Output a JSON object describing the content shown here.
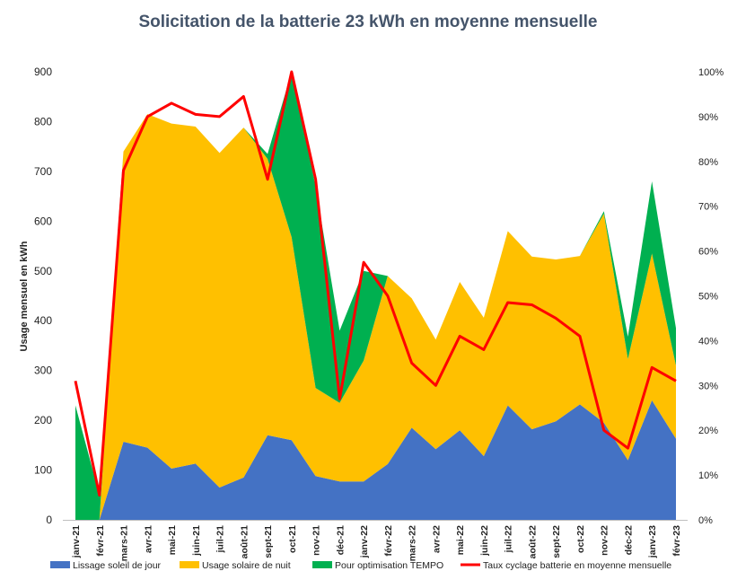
{
  "colors": {
    "jour": "#4472c4",
    "nuit": "#ffc000",
    "tempo": "#00b050",
    "taux": "#ff0000",
    "grid": "#d9d9d9",
    "title": "#44546a"
  },
  "chart_data": {
    "type": "area",
    "title": "Solicitation  de la batterie 23 kWh en moyenne mensuelle",
    "ylabel": "Usage  mensuel en kWh",
    "y2label": "",
    "ylim": [
      0,
      900
    ],
    "y2lim": [
      0,
      1
    ],
    "yticks": [
      "0",
      "100",
      "200",
      "300",
      "400",
      "500",
      "600",
      "700",
      "800",
      "900"
    ],
    "y2ticks": [
      "0%",
      "10%",
      "20%",
      "30%",
      "40%",
      "50%",
      "60%",
      "70%",
      "80%",
      "90%",
      "100%"
    ],
    "grid": false,
    "legend_position": "bottom",
    "categories": [
      "janv-21",
      "févr-21",
      "mars-21",
      "avr-21",
      "mai-21",
      "juin-21",
      "juil-21",
      "août-21",
      "sept-21",
      "oct-21",
      "nov-21",
      "déc-21",
      "janv-22",
      "févr-22",
      "mars-22",
      "avr-22",
      "mai-22",
      "juin-22",
      "juil-22",
      "août-22",
      "sept-22",
      "oct-22",
      "nov-22",
      "déc-22",
      "janv-23",
      "févr-23"
    ],
    "series": [
      {
        "name": "Lissage soleil de jour",
        "kind": "stacked-area",
        "values": [
          0,
          0,
          157,
          145,
          103,
          113,
          65,
          85,
          170,
          160,
          88,
          77,
          77,
          112,
          185,
          142,
          180,
          128,
          230,
          182,
          198,
          232,
          195,
          120,
          240,
          163
        ]
      },
      {
        "name": "Usage solaire de nuit",
        "kind": "stacked-area",
        "values": [
          0,
          0,
          583,
          670,
          693,
          677,
          672,
          703,
          555,
          408,
          177,
          158,
          243,
          378,
          260,
          220,
          298,
          278,
          350,
          347,
          325,
          298,
          420,
          203,
          295,
          147
        ]
      },
      {
        "name": "Pour optimisation TEMPO",
        "kind": "stacked-area",
        "values": [
          230,
          50,
          0,
          0,
          0,
          0,
          0,
          0,
          10,
          332,
          405,
          145,
          180,
          0,
          0,
          0,
          0,
          0,
          0,
          0,
          0,
          0,
          5,
          45,
          145,
          75
        ]
      },
      {
        "name": "Taux cyclage batterie en moyenne mensuelle",
        "kind": "line",
        "axis": "right",
        "values": [
          0.31,
          0.055,
          0.78,
          0.9,
          0.93,
          0.905,
          0.9,
          0.945,
          0.76,
          1.0,
          0.76,
          0.27,
          0.575,
          0.5,
          0.35,
          0.3,
          0.41,
          0.38,
          0.485,
          0.48,
          0.45,
          0.41,
          0.2,
          0.16,
          0.34,
          0.31
        ]
      }
    ]
  }
}
